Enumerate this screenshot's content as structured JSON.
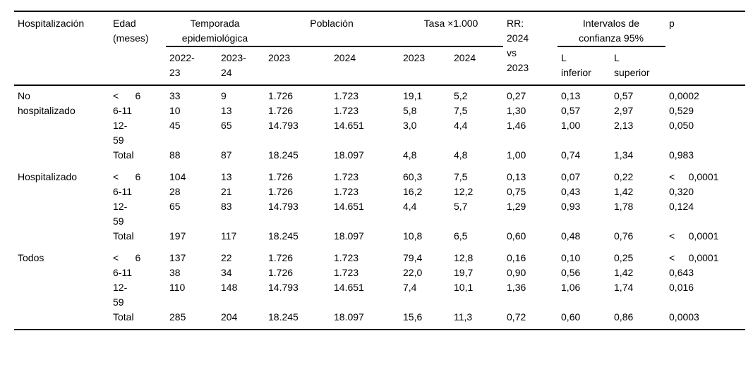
{
  "table": {
    "header": {
      "hospitalizacion": "Hospitalización",
      "edad": "Edad\n(meses)",
      "temporada": "Temporada\nepidemiológica",
      "poblacion": "Población",
      "tasa": "Tasa ×1.000",
      "rr": "RR:\n2024\nvs\n2023",
      "intervalos": "Intervalos de\nconfianza 95%",
      "p": "p",
      "sub_temporada": [
        "2022-\n23",
        "2023-\n24"
      ],
      "sub_poblacion": [
        "2023",
        "2024"
      ],
      "sub_tasa": [
        "2023",
        "2024"
      ],
      "sub_intervalos": [
        "L\ninferior",
        "L\nsuperior"
      ]
    },
    "column_keys": [
      "edad",
      "temporada-2022-23",
      "temporada-2023-24",
      "poblacion-2023",
      "poblacion-2024",
      "tasa-2023",
      "tasa-2024",
      "rr",
      "l-inferior",
      "l-superior",
      "p"
    ],
    "sections": [
      {
        "label": "No\nhospitalizado",
        "rows": [
          [
            "<      6",
            "33",
            "9",
            "1.726",
            "1.723",
            "19,1",
            "5,2",
            "0,27",
            "0,13",
            "0,57",
            "0,0002"
          ],
          [
            "6-11",
            "10",
            "13",
            "1.726",
            "1.723",
            "5,8",
            "7,5",
            "1,30",
            "0,57",
            "2,97",
            "0,529"
          ],
          [
            "12-\n59",
            "45",
            "65",
            "14.793",
            "14.651",
            "3,0",
            "4,4",
            "1,46",
            "1,00",
            "2,13",
            "0,050"
          ],
          [
            "Total",
            "88",
            "87",
            "18.245",
            "18.097",
            "4,8",
            "4,8",
            "1,00",
            "0,74",
            "1,34",
            "0,983"
          ]
        ]
      },
      {
        "label": "Hospitalizado",
        "rows": [
          [
            "<      6",
            "104",
            "13",
            "1.726",
            "1.723",
            "60,3",
            "7,5",
            "0,13",
            "0,07",
            "0,22",
            "<     0,0001"
          ],
          [
            "6-11",
            "28",
            "21",
            "1.726",
            "1.723",
            "16,2",
            "12,2",
            "0,75",
            "0,43",
            "1,42",
            "0,320"
          ],
          [
            "12-\n59",
            "65",
            "83",
            "14.793",
            "14.651",
            "4,4",
            "5,7",
            "1,29",
            "0,93",
            "1,78",
            "0,124"
          ],
          [
            "Total",
            "197",
            "117",
            "18.245",
            "18.097",
            "10,8",
            "6,5",
            "0,60",
            "0,48",
            "0,76",
            "<     0,0001"
          ]
        ]
      },
      {
        "label": "Todos",
        "rows": [
          [
            "<      6",
            "137",
            "22",
            "1.726",
            "1.723",
            "79,4",
            "12,8",
            "0,16",
            "0,10",
            "0,25",
            "<     0,0001"
          ],
          [
            "6-11",
            "38",
            "34",
            "1.726",
            "1.723",
            "22,0",
            "19,7",
            "0,90",
            "0,56",
            "1,42",
            "0,643"
          ],
          [
            "12-\n59",
            "110",
            "148",
            "14.793",
            "14.651",
            "7,4",
            "10,1",
            "1,36",
            "1,06",
            "1,74",
            "0,016"
          ],
          [
            "Total",
            "285",
            "204",
            "18.245",
            "18.097",
            "15,6",
            "11,3",
            "0,72",
            "0,60",
            "0,86",
            "0,0003"
          ]
        ]
      }
    ]
  }
}
